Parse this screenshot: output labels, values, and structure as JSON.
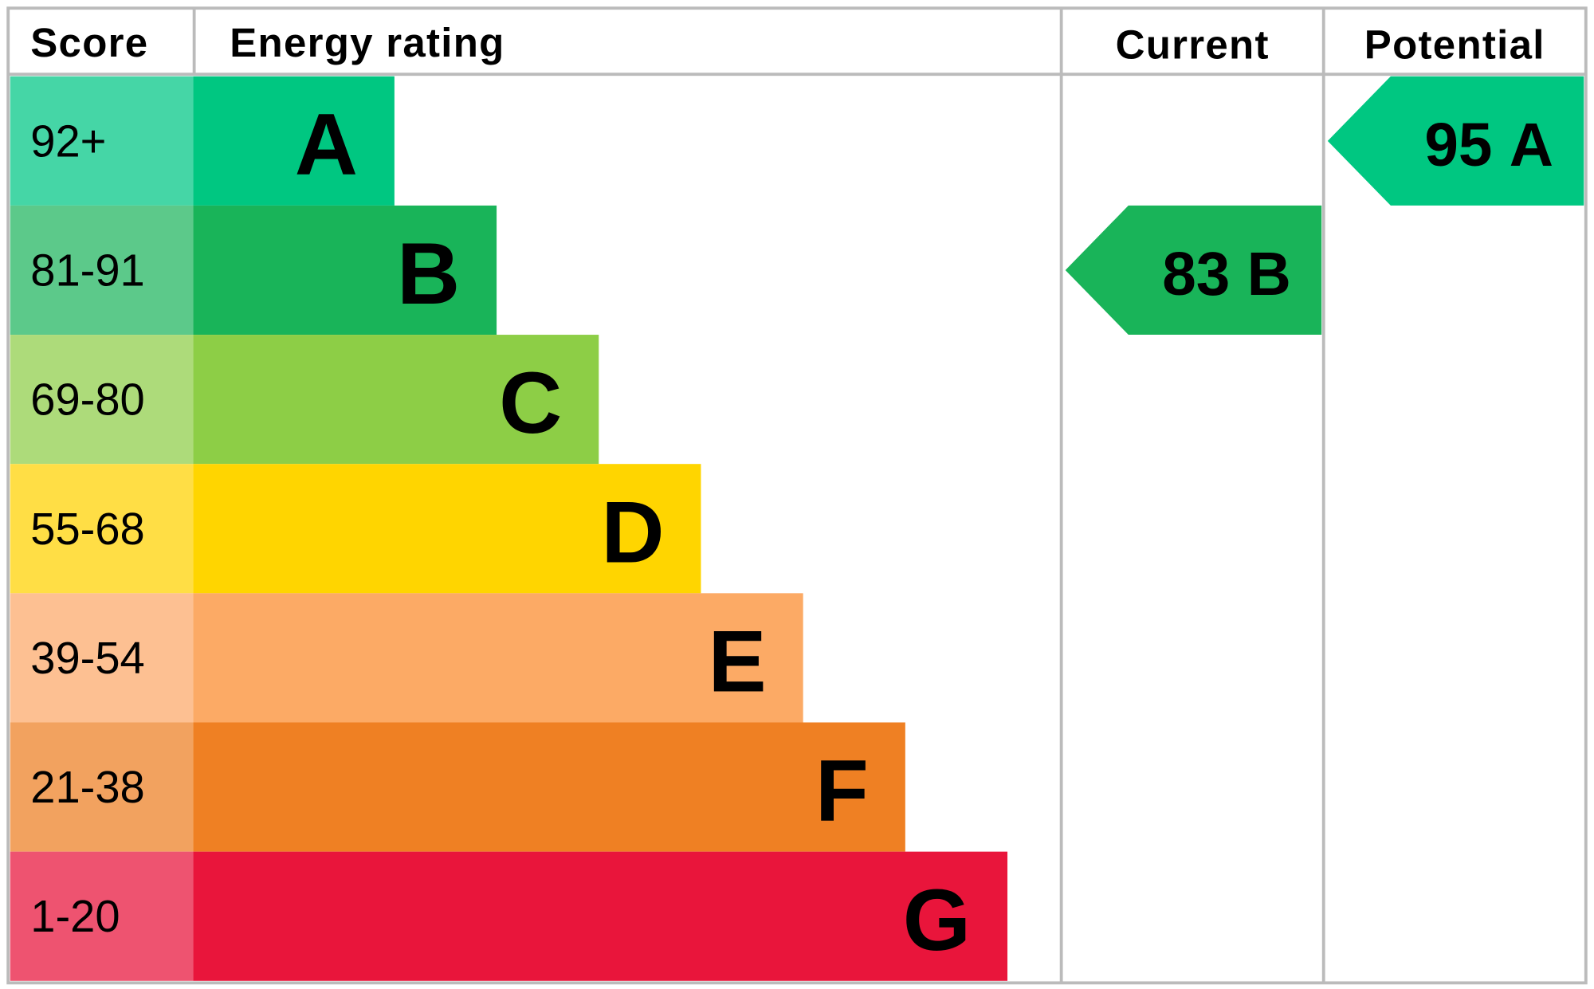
{
  "header": {
    "score": "Score",
    "rating": "Energy rating",
    "current": "Current",
    "potential": "Potential"
  },
  "rows": [
    {
      "score": "92+",
      "band": "A",
      "score_color": "#45d6a6",
      "bar_color": "#00c781"
    },
    {
      "score": "81-91",
      "band": "B",
      "score_color": "#5cc98a",
      "bar_color": "#19b459"
    },
    {
      "score": "69-80",
      "band": "C",
      "score_color": "#addb7a",
      "bar_color": "#8dce46"
    },
    {
      "score": "55-68",
      "band": "D",
      "score_color": "#ffde45",
      "bar_color": "#ffd500"
    },
    {
      "score": "39-54",
      "band": "E",
      "score_color": "#fdc092",
      "bar_color": "#fcaa65"
    },
    {
      "score": "21-38",
      "band": "F",
      "score_color": "#f2a25f",
      "bar_color": "#ef8023"
    },
    {
      "score": "1-20",
      "band": "G",
      "score_color": "#ee5370",
      "bar_color": "#e9153b"
    }
  ],
  "current": {
    "value": 83,
    "band": "B"
  },
  "potential": {
    "value": 95,
    "band": "A"
  }
}
